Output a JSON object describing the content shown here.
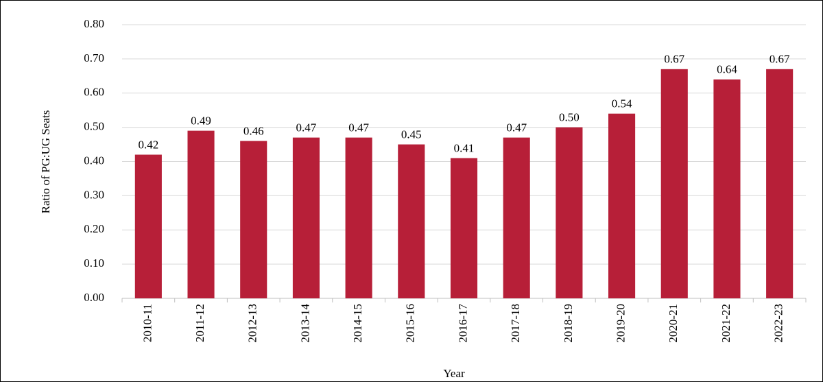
{
  "chart_data": {
    "type": "bar",
    "x_label": "Year",
    "y_label": "Ratio of PG:UG Seats",
    "categories": [
      "2010-11",
      "2011-12",
      "2012-13",
      "2013-14",
      "2014-15",
      "2015-16",
      "2016-17",
      "2017-18",
      "2018-19",
      "2019-20",
      "2020-21",
      "2021-22",
      "2022-23"
    ],
    "values": [
      0.42,
      0.49,
      0.46,
      0.47,
      0.47,
      0.45,
      0.41,
      0.47,
      0.5,
      0.54,
      0.67,
      0.64,
      0.67
    ],
    "value_labels": [
      "0.42",
      "0.49",
      "0.46",
      "0.47",
      "0.47",
      "0.45",
      "0.41",
      "0.47",
      "0.50",
      "0.54",
      "0.67",
      "0.64",
      "0.67"
    ],
    "color": "#b71f38",
    "ylim": [
      0,
      0.8
    ],
    "yticks": [
      {
        "value": 0,
        "label": "0.00"
      },
      {
        "value": 0.1,
        "label": "0.10"
      },
      {
        "value": 0.2,
        "label": "0.20"
      },
      {
        "value": 0.3,
        "label": "0.30"
      },
      {
        "value": 0.4,
        "label": "0.40"
      },
      {
        "value": 0.5,
        "label": "0.50"
      },
      {
        "value": 0.6,
        "label": "0.60"
      },
      {
        "value": 0.7,
        "label": "0.70"
      },
      {
        "value": 0.8,
        "label": "0.80"
      }
    ],
    "grid": true
  }
}
